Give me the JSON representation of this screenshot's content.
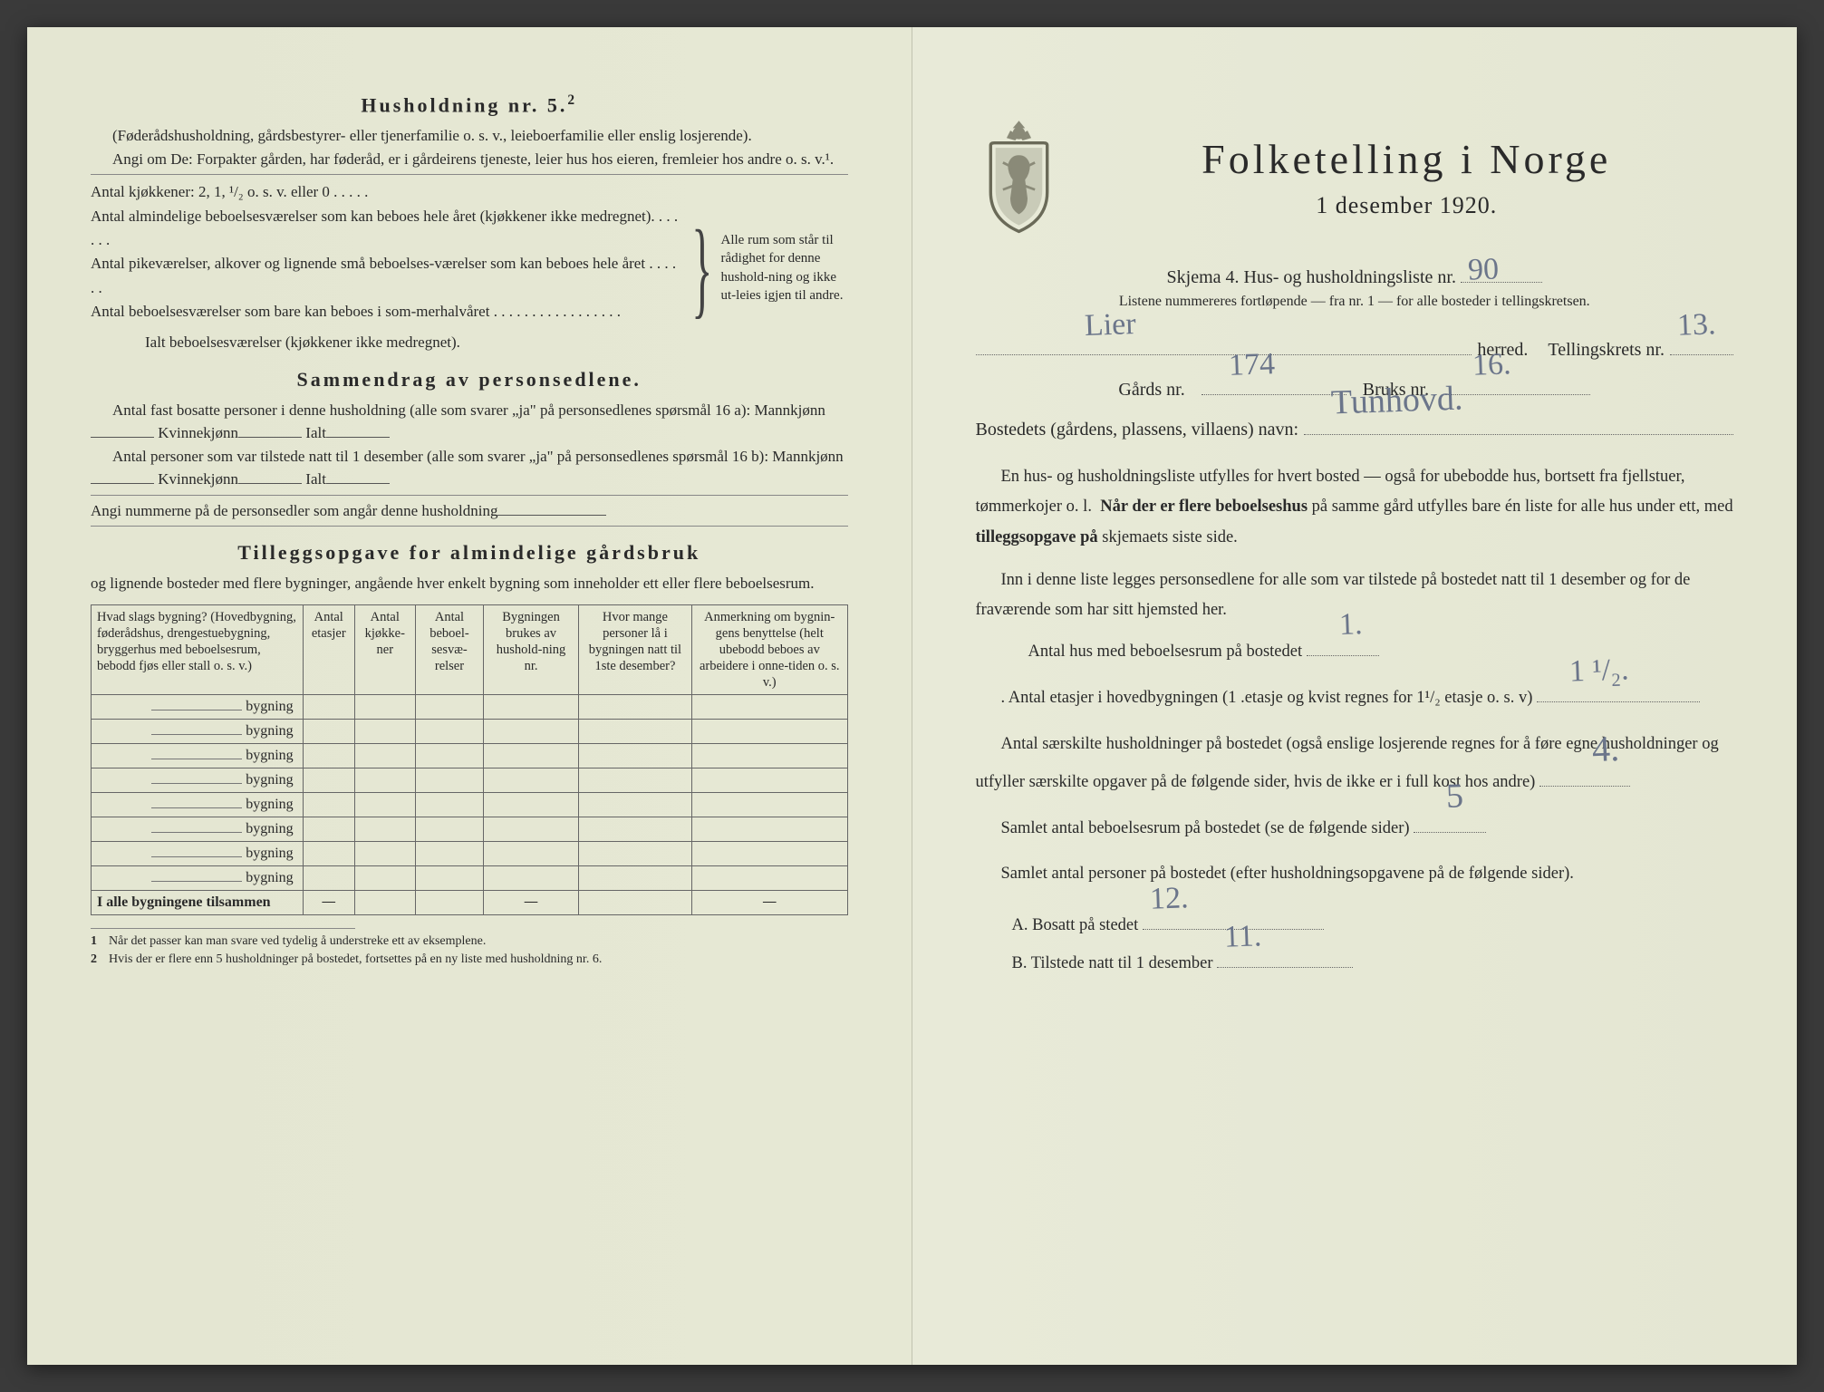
{
  "colors": {
    "paper": "#e8ead8",
    "ink": "#2a2a2a",
    "handwriting": "#6b758a",
    "rule": "#666666"
  },
  "left": {
    "title": "Husholdning nr. 5.",
    "title_sup": "2",
    "intro1": "(Føderådshusholdning, gårdsbestyrer- eller tjenerfamilie o. s. v., leieboerfamilie eller enslig losjerende).",
    "intro2": "Angi om De: Forpakter gården, har føderåd, er i gårdeirens tjeneste, leier hus hos eieren, fremleier hos andre o. s. v.¹.",
    "brace_lines": [
      "Antal kjøkkener: 2, 1, ¹/₂ o. s. v. eller 0 . . . . .",
      "Antal almindelige beboelsesværelser som kan beboes hele året (kjøkkener ikke medregnet). . . . . . .",
      "Antal pikeværelser, alkover og lignende små beboelses-værelser som kan beboes hele året . . . . . .",
      "Antal beboelsesværelser som bare kan beboes i som-merhalvåret . . . . . . . . . . . . . . . . .",
      "Ialt beboelsesværelser (kjøkkener ikke medregnet)."
    ],
    "brace_right": "Alle rum som står til rådighet for denne hushold-ning og ikke ut-leies igjen til andre.",
    "samm_title": "Sammendrag av personsedlene.",
    "samm_p1a": "Antal fast bosatte personer i denne husholdning (alle som svarer „ja\" på personsedlenes spørsmål 16 a): Mannkjønn",
    "samm_kv": "Kvinnekjønn",
    "samm_ialt": "Ialt",
    "samm_p2a": "Antal personer som var tilstede natt til 1 desember (alle som svarer „ja\" på personsedlenes spørsmål 16 b): Mannkjønn",
    "samm_p3": "Angi nummerne på de personsedler som angår denne husholdning",
    "tillegg_title": "Tilleggsopgave for almindelige gårdsbruk",
    "tillegg_sub": "og lignende bosteder med flere bygninger, angående hver enkelt bygning som inneholder ett eller flere beboelsesrum.",
    "table": {
      "headers": [
        "Hvad slags bygning?\n(Hovedbygning, føderådshus, drengestuebygning, bryggerhus med beboelsesrum, bebodd fjøs eller stall o. s. v.)",
        "Antal etasjer",
        "Antal kjøkke-ner",
        "Antal beboel-sesvæ-relser",
        "Bygningen brukes av hushold-ning nr.",
        "Hvor mange personer lå i bygningen natt til 1ste desember?",
        "Anmerkning om bygnin-gens benyttelse (helt ubebodd beboes av arbeidere i onne-tiden o. s. v.)"
      ],
      "row_label": "bygning",
      "rows": 8,
      "footer": "I alle bygningene tilsammen"
    },
    "footnotes": [
      "Når det passer kan man svare ved tydelig å understreke ett av eksemplene.",
      "Hvis der er flere enn 5 husholdninger på bostedet, fortsettes på en ny liste med husholdning nr. 6."
    ]
  },
  "right": {
    "main_title": "Folketelling i Norge",
    "subtitle": "1 desember 1920.",
    "schema_label": "Skjema 4.  Hus- og husholdningsliste nr.",
    "schema_nr": "90",
    "note": "Listene nummereres fortløpende — fra nr. 1 — for alle bosteder i tellingskretsen.",
    "herred_label": "herred.",
    "herred_value": "Lier",
    "tellingskrets_label": "Tellingskrets nr.",
    "tellingskrets_value": "13.",
    "gards_label": "Gårds nr.",
    "gards_value": "174",
    "bruks_label": "Bruks nr.",
    "bruks_value": "16.",
    "bosted_label": "Bostedets (gårdens, plassens, villaens) navn:",
    "bosted_value": "Tunhovd.",
    "para1": "En hus- og husholdningsliste utfylles for hvert bosted — også for ubebodde hus, bortsett fra fjellstuer, tømmerkojer o. l.  Når der er flere beboelseshus på samme gård utfylles bare én liste for alle hus under ett, med tilleggsopgave på skjemaets siste side.",
    "para1_bold1": "Når der er flere beboelseshus",
    "para1_bold2": "tilleggsopgave på",
    "para2": "Inn i denne liste legges personsedlene for alle som var tilstede på bostedet natt til 1 desember og for de fraværende som har sitt hjemsted her.",
    "q1": "Antal hus med beboelsesrum på bostedet",
    "q1_value": "1.",
    "q2a": ".    Antal etasjer i hovedbygningen (1 .etasje og kvist regnes for 1¹/₂ etasje o. s. v)",
    "q2_value": "1 ¹/₂.",
    "q3": "Antal særskilte husholdninger på bostedet (også enslige losjerende regnes for å føre egne husholdninger og utfyller særskilte opgaver på de følgende sider, hvis de ikke er i full kost hos andre)",
    "q3_value": "4.",
    "q4": "Samlet antal beboelsesrum på bostedet (se de følgende sider)",
    "q4_value": "5",
    "q5": "Samlet antal personer på bostedet (efter husholdningsopgavene på de følgende sider).",
    "qA_label": "A.  Bosatt på stedet",
    "qA_value": "12.",
    "qB_label": "B.  Tilstede natt til 1 desember",
    "qB_value": "11."
  }
}
